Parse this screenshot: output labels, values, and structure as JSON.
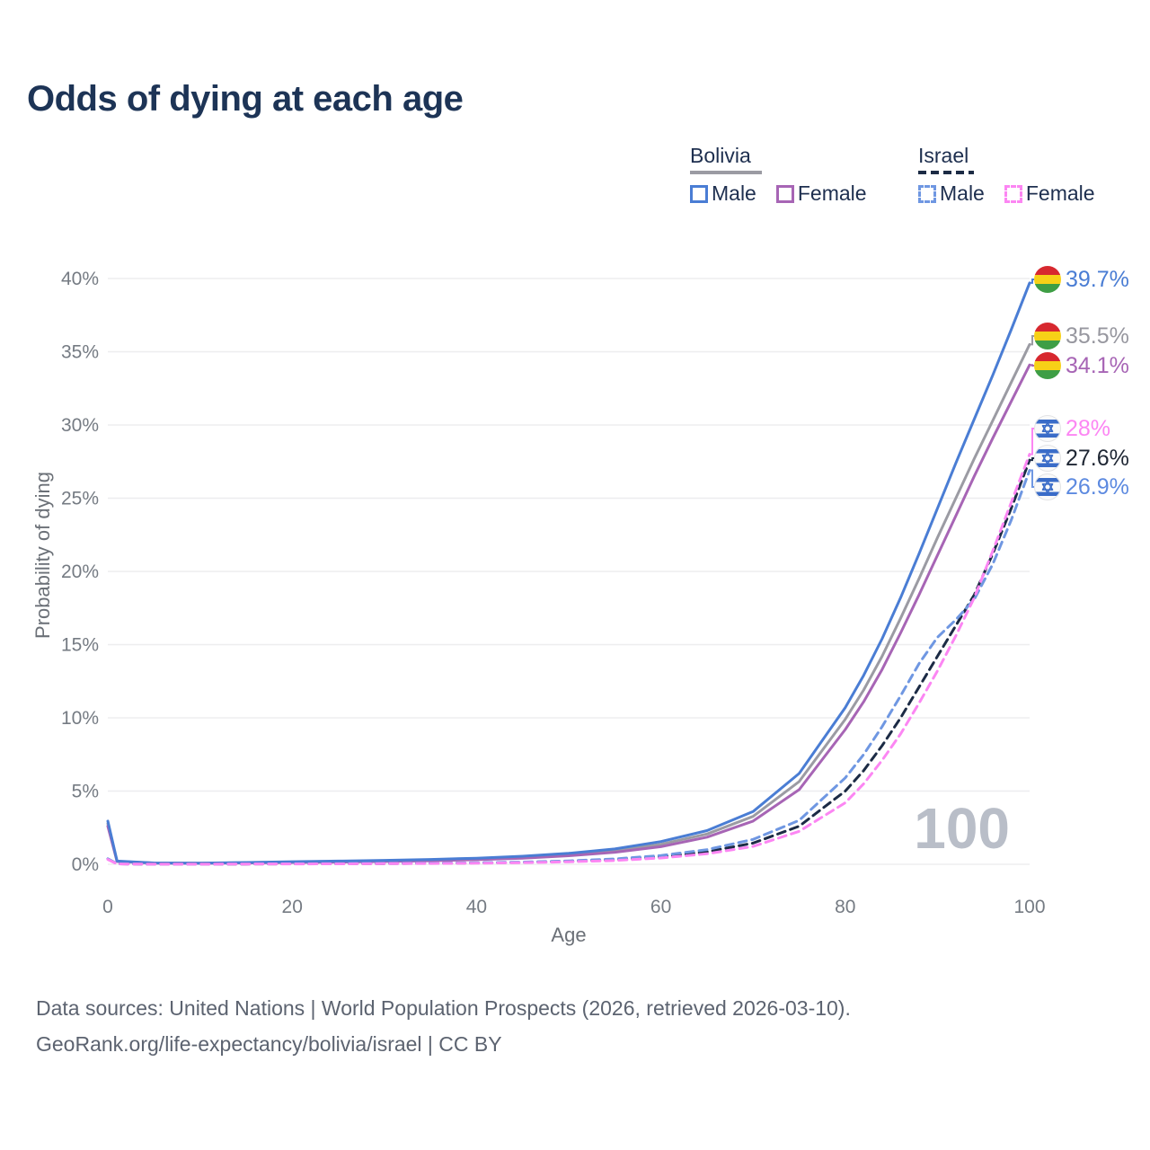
{
  "title": "Odds of dying at each age",
  "legend": {
    "groups": [
      {
        "id": "bolivia",
        "country": "Bolivia",
        "line_style": "solid",
        "line_color": "#9b9ba3",
        "items": [
          {
            "label": "Male",
            "color": "#4a7dd4"
          },
          {
            "label": "Female",
            "color": "#a765b5"
          }
        ]
      },
      {
        "id": "israel",
        "country": "Israel",
        "line_style": "dashed",
        "line_color": "#1c2b45",
        "items": [
          {
            "label": "Male",
            "color": "#6f97e2"
          },
          {
            "label": "Female",
            "color": "#fc86f3"
          }
        ]
      }
    ]
  },
  "chart_data": {
    "type": "line",
    "title": "Odds of dying at each age",
    "xlabel": "Age",
    "ylabel": "Probability of dying",
    "xlim": [
      0,
      100
    ],
    "ylim": [
      0,
      40
    ],
    "x_ticks": [
      0,
      20,
      40,
      60,
      80,
      100
    ],
    "y_ticks": [
      0,
      5,
      10,
      15,
      20,
      25,
      30,
      35,
      40
    ],
    "y_tick_suffix": "%",
    "grid": "horizontal",
    "hover_age_indicator": "100",
    "ages": [
      0,
      1,
      5,
      10,
      15,
      20,
      25,
      30,
      35,
      40,
      45,
      50,
      55,
      60,
      65,
      70,
      75,
      80,
      82,
      84,
      86,
      88,
      90,
      92,
      94,
      96,
      98,
      100
    ],
    "series": [
      {
        "name": "Bolivia Male",
        "country": "Bolivia",
        "sex": "Male",
        "color": "#4a7dd4",
        "dashed": false,
        "flag": "bolivia",
        "end_label": "39.7%",
        "end_value": 39.7,
        "label_color": "#4a7dd4",
        "values": [
          2.95,
          0.22,
          0.09,
          0.08,
          0.12,
          0.18,
          0.22,
          0.27,
          0.33,
          0.42,
          0.55,
          0.75,
          1.05,
          1.55,
          2.3,
          3.6,
          6.2,
          10.7,
          12.9,
          15.4,
          18.2,
          21.2,
          24.3,
          27.4,
          30.4,
          33.4,
          36.5,
          39.7
        ]
      },
      {
        "name": "Bolivia Both sexes",
        "country": "Bolivia",
        "sex": "Both",
        "color": "#9b9ba3",
        "dashed": false,
        "flag": "bolivia",
        "end_label": "35.5%",
        "end_value": 35.5,
        "label_color": "#97979f",
        "values": [
          2.78,
          0.2,
          0.085,
          0.075,
          0.105,
          0.15,
          0.185,
          0.23,
          0.285,
          0.365,
          0.48,
          0.66,
          0.93,
          1.37,
          2.07,
          3.27,
          5.65,
          9.9,
          11.9,
          14.2,
          16.8,
          19.5,
          22.3,
          25.0,
          27.7,
          30.3,
          32.9,
          35.5
        ]
      },
      {
        "name": "Bolivia Female",
        "country": "Bolivia",
        "sex": "Female",
        "color": "#a765b5",
        "dashed": false,
        "flag": "bolivia",
        "end_label": "34.1%",
        "end_value": 34.1,
        "label_color": "#a765b5",
        "values": [
          2.6,
          0.19,
          0.08,
          0.07,
          0.09,
          0.12,
          0.15,
          0.19,
          0.24,
          0.31,
          0.42,
          0.58,
          0.82,
          1.2,
          1.85,
          2.95,
          5.1,
          9.2,
          11.1,
          13.3,
          15.8,
          18.4,
          21.1,
          23.8,
          26.5,
          29.1,
          31.6,
          34.1
        ]
      },
      {
        "name": "Israel Female",
        "country": "Israel",
        "sex": "Female",
        "color": "#fc86f3",
        "dashed": true,
        "flag": "israel",
        "end_label": "28%",
        "end_value": 28.0,
        "label_color": "#fc86f3",
        "values": [
          0.33,
          0.025,
          0.009,
          0.009,
          0.016,
          0.024,
          0.032,
          0.042,
          0.055,
          0.075,
          0.11,
          0.17,
          0.26,
          0.43,
          0.72,
          1.22,
          2.25,
          4.2,
          5.5,
          7.1,
          8.9,
          11.0,
          13.2,
          15.6,
          18.2,
          21.4,
          24.7,
          28.0
        ]
      },
      {
        "name": "Israel Both sexes",
        "country": "Israel",
        "sex": "Both",
        "color": "#1c2b45",
        "dashed": true,
        "flag": "israel",
        "end_label": "27.6%",
        "end_value": 27.6,
        "label_color": "#1e2633",
        "values": [
          0.36,
          0.028,
          0.01,
          0.01,
          0.02,
          0.033,
          0.042,
          0.052,
          0.067,
          0.09,
          0.13,
          0.2,
          0.31,
          0.51,
          0.85,
          1.45,
          2.6,
          5.0,
          6.4,
          8.1,
          10.0,
          12.1,
          14.2,
          16.3,
          18.4,
          21.2,
          24.3,
          27.6
        ]
      },
      {
        "name": "Israel Male",
        "country": "Israel",
        "sex": "Male",
        "color": "#6f97e2",
        "dashed": true,
        "flag": "israel",
        "end_label": "26.9%",
        "end_value": 26.9,
        "label_color": "#5d8ae0",
        "values": [
          0.38,
          0.03,
          0.012,
          0.012,
          0.025,
          0.045,
          0.055,
          0.065,
          0.08,
          0.105,
          0.155,
          0.235,
          0.37,
          0.6,
          1.0,
          1.7,
          3.0,
          5.9,
          7.5,
          9.4,
          11.5,
          13.7,
          15.5,
          16.7,
          18.1,
          20.5,
          23.5,
          26.9
        ]
      }
    ]
  },
  "footer": {
    "line1": "Data sources: United Nations | World Population Prospects (2026, retrieved 2026-03-10).",
    "line2": "GeoRank.org/life-expectancy/bolivia/israel | CC BY"
  }
}
